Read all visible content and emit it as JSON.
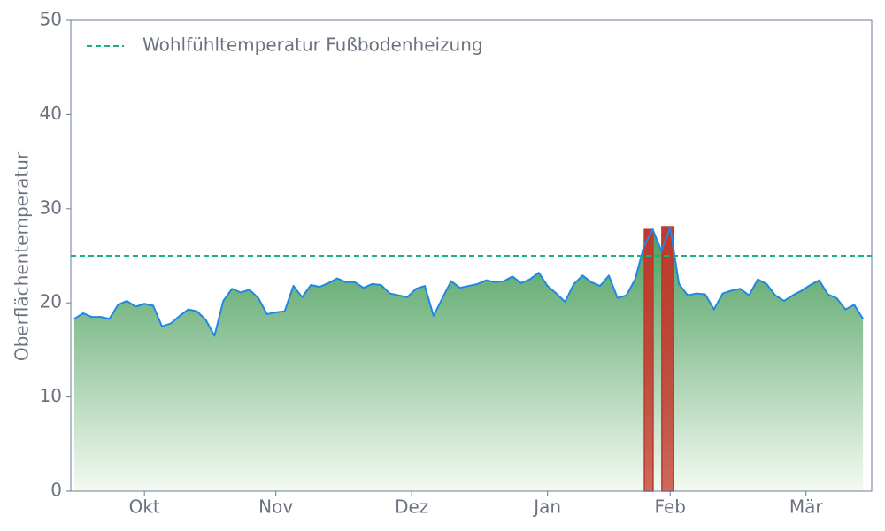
{
  "chart_data": {
    "type": "area",
    "y_label": "Oberflächentemperatur",
    "x": [
      0,
      2,
      4,
      6,
      8,
      10,
      12,
      14,
      16,
      18,
      20,
      22,
      24,
      26,
      28,
      30,
      32,
      34,
      36,
      38,
      40,
      42,
      44,
      46,
      48,
      50,
      52,
      54,
      56,
      58,
      60,
      62,
      64,
      66,
      68,
      70,
      72,
      74,
      76,
      78,
      80,
      82,
      84,
      86,
      88,
      90,
      92,
      94,
      96,
      98,
      100,
      102,
      104,
      106,
      108,
      110,
      112,
      114,
      116,
      118,
      120,
      122,
      124,
      126,
      128,
      130,
      132,
      134,
      136,
      138,
      140,
      142,
      144,
      146,
      148,
      150,
      152,
      154,
      156,
      158,
      160,
      162,
      164,
      166,
      168,
      170,
      172,
      174,
      176,
      178,
      180
    ],
    "series": [
      {
        "color": "#1e88e5",
        "fill_top": "#4a9e5c",
        "fill_bottom": "#f4faf2",
        "values": [
          18.3,
          18.9,
          18.5,
          18.5,
          18.3,
          19.8,
          20.2,
          19.6,
          19.9,
          19.7,
          17.5,
          17.8,
          18.6,
          19.3,
          19.1,
          18.2,
          16.5,
          20.2,
          21.5,
          21.1,
          21.4,
          20.5,
          18.8,
          19.0,
          19.1,
          21.8,
          20.6,
          21.9,
          21.7,
          22.1,
          22.6,
          22.2,
          22.2,
          21.6,
          22.0,
          21.9,
          21.0,
          20.8,
          20.6,
          21.5,
          21.8,
          18.6,
          20.5,
          22.3,
          21.6,
          21.8,
          22.0,
          22.4,
          22.2,
          22.3,
          22.8,
          22.1,
          22.5,
          23.2,
          21.8,
          21.0,
          20.1,
          22.0,
          22.9,
          22.2,
          21.8,
          22.9,
          20.5,
          20.8,
          22.5,
          26.0,
          27.8,
          25.5,
          28.0,
          22.0,
          20.8,
          21.0,
          20.9,
          19.3,
          21.0,
          21.3,
          21.5,
          20.8,
          22.5,
          22.0,
          20.8,
          20.2,
          20.8,
          21.3,
          21.9,
          22.4,
          20.9,
          20.5,
          19.3,
          19.8,
          18.3
        ]
      }
    ],
    "highlight_bars": [
      {
        "x0": 130.1,
        "x1": 132.1,
        "value": 27.8
      },
      {
        "x0": 134.1,
        "x1": 136.8,
        "value": 28.1
      }
    ],
    "highlight_color": "#c0392b",
    "reference_line": {
      "value": 25,
      "label": "Wohlfühltemperatur Fußbodenheizung",
      "color": "#1aaf7c"
    },
    "legend": "upper left",
    "xlim": [
      -0.8,
      182
    ],
    "xticks": [
      {
        "value": 16,
        "label": "Okt"
      },
      {
        "value": 46,
        "label": "Nov"
      },
      {
        "value": 77,
        "label": "Dez"
      },
      {
        "value": 108,
        "label": "Jan"
      },
      {
        "value": 136,
        "label": "Feb"
      },
      {
        "value": 167,
        "label": "Mär"
      }
    ],
    "ylim": [
      0,
      50
    ],
    "yticks": [
      0,
      10,
      20,
      30,
      40,
      50
    ]
  }
}
